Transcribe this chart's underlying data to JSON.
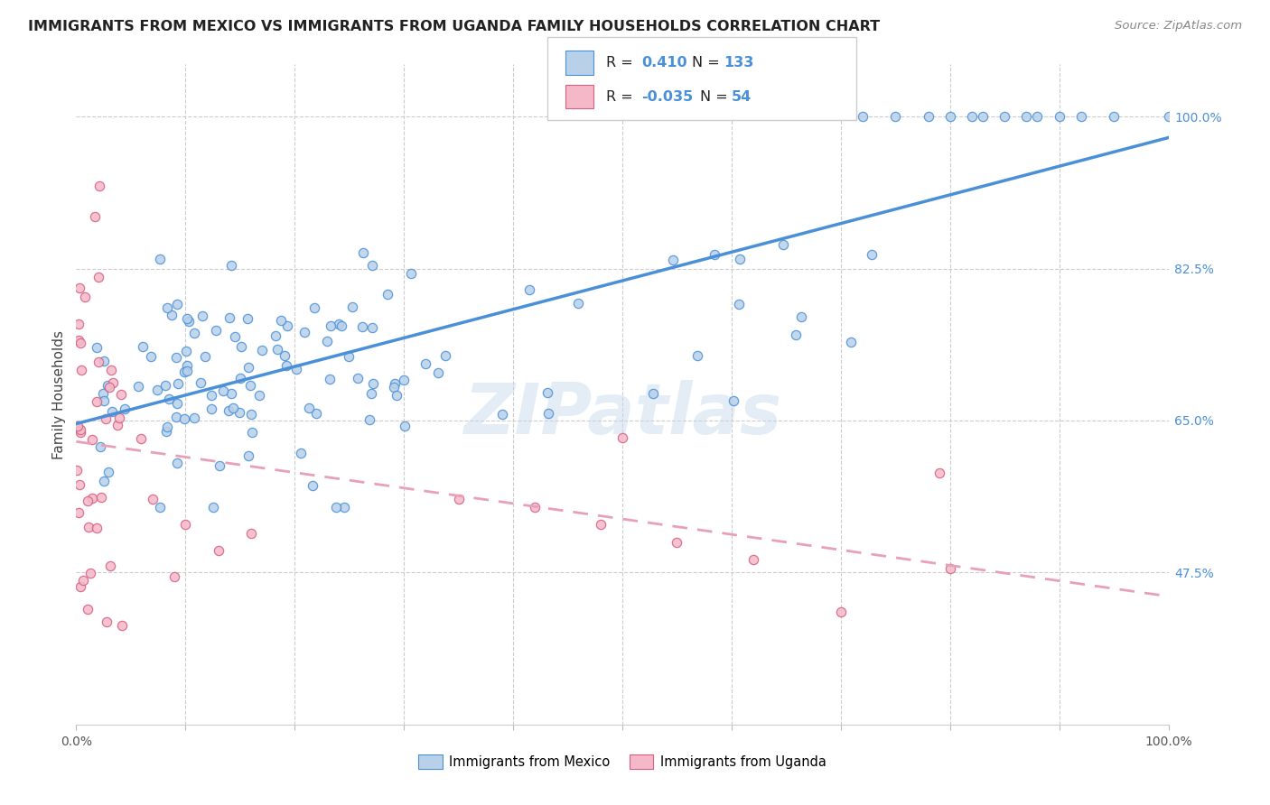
{
  "title": "IMMIGRANTS FROM MEXICO VS IMMIGRANTS FROM UGANDA FAMILY HOUSEHOLDS CORRELATION CHART",
  "source": "Source: ZipAtlas.com",
  "ylabel": "Family Households",
  "xlim": [
    0.0,
    1.0
  ],
  "ylim": [
    0.3,
    1.06
  ],
  "y_tick_vals": [
    0.475,
    0.65,
    0.825,
    1.0
  ],
  "color_mexico": "#b8d0e8",
  "color_uganda": "#f5b8c8",
  "line_color_mexico": "#4a90d9",
  "line_color_uganda": "#e8a0b8",
  "legend_label_mexico": "Immigrants from Mexico",
  "legend_label_uganda": "Immigrants from Uganda",
  "watermark": "ZIPatlas",
  "r_mexico": 0.41,
  "n_mexico": 133,
  "r_uganda": -0.035,
  "n_uganda": 54
}
